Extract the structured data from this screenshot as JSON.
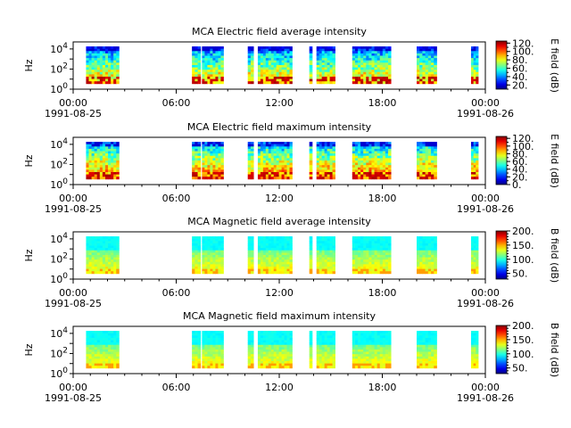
{
  "chart_data": [
    {
      "type": "heatmap",
      "title": "MCA  Electric field average intensity",
      "ylabel": "Hz",
      "y_scale": "log",
      "y_ticks": [
        {
          "exp": "0"
        },
        {
          "exp": "2"
        },
        {
          "exp": "4"
        }
      ],
      "x_ticks": [
        {
          "time": "00:00",
          "date": "1991-08-25"
        },
        {
          "time": "06:00",
          "date": ""
        },
        {
          "time": "12:00",
          "date": ""
        },
        {
          "time": "18:00",
          "date": ""
        },
        {
          "time": "00:00",
          "date": "1991-08-26"
        }
      ],
      "colorbar_label": "E field (dB)",
      "colorbar_ticks": [
        "20.",
        "40.",
        "60.",
        "80.",
        "100.",
        "120."
      ],
      "colorbar_range": [
        10,
        125
      ],
      "colormap": "jet",
      "field": "E",
      "mode": "avg"
    },
    {
      "type": "heatmap",
      "title": "MCA  Electric field maximum intensity",
      "ylabel": "Hz",
      "y_scale": "log",
      "y_ticks": [
        {
          "exp": "0"
        },
        {
          "exp": "2"
        },
        {
          "exp": "4"
        }
      ],
      "x_ticks": [
        {
          "time": "00:00",
          "date": "1991-08-25"
        },
        {
          "time": "06:00",
          "date": ""
        },
        {
          "time": "12:00",
          "date": ""
        },
        {
          "time": "18:00",
          "date": ""
        },
        {
          "time": "00:00",
          "date": "1991-08-26"
        }
      ],
      "colorbar_label": "E field (dB)",
      "colorbar_ticks": [
        "0.",
        "20.",
        "40.",
        "60.",
        "80.",
        "100.",
        "120."
      ],
      "colorbar_range": [
        0,
        125
      ],
      "colormap": "jet",
      "field": "E",
      "mode": "max"
    },
    {
      "type": "heatmap",
      "title": "MCA  Magnetic field average intensity",
      "ylabel": "Hz",
      "y_scale": "log",
      "y_ticks": [
        {
          "exp": "0"
        },
        {
          "exp": "2"
        },
        {
          "exp": "4"
        }
      ],
      "x_ticks": [
        {
          "time": "00:00",
          "date": "1991-08-25"
        },
        {
          "time": "06:00",
          "date": ""
        },
        {
          "time": "12:00",
          "date": ""
        },
        {
          "time": "18:00",
          "date": ""
        },
        {
          "time": "00:00",
          "date": "1991-08-26"
        }
      ],
      "colorbar_label": "B field (dB)",
      "colorbar_ticks": [
        "50.",
        "100.",
        "150.",
        "200."
      ],
      "colorbar_range": [
        30,
        200
      ],
      "colormap": "jet",
      "field": "B",
      "mode": "avg"
    },
    {
      "type": "heatmap",
      "title": "MCA  Magnetic field maximum intensity",
      "ylabel": "Hz",
      "y_scale": "log",
      "y_ticks": [
        {
          "exp": "0"
        },
        {
          "exp": "2"
        },
        {
          "exp": "4"
        }
      ],
      "x_ticks": [
        {
          "time": "00:00",
          "date": "1991-08-25"
        },
        {
          "time": "06:00",
          "date": ""
        },
        {
          "time": "12:00",
          "date": ""
        },
        {
          "time": "18:00",
          "date": ""
        },
        {
          "time": "00:00",
          "date": "1991-08-26"
        }
      ],
      "colorbar_label": "B field (dB)",
      "colorbar_ticks": [
        "50.",
        "100.",
        "150.",
        "200."
      ],
      "colorbar_range": [
        30,
        200
      ],
      "colormap": "jet",
      "field": "B",
      "mode": "max"
    }
  ],
  "data_segments_utc": [
    [
      "00:45",
      "02:40"
    ],
    [
      "06:55",
      "07:25"
    ],
    [
      "07:30",
      "08:45"
    ],
    [
      "10:10",
      "10:30"
    ],
    [
      "10:45",
      "12:45"
    ],
    [
      "13:45",
      "13:55"
    ],
    [
      "14:10",
      "15:15"
    ],
    [
      "16:15",
      "18:30"
    ],
    [
      "20:00",
      "21:10"
    ],
    [
      "23:10",
      "23:35"
    ]
  ]
}
